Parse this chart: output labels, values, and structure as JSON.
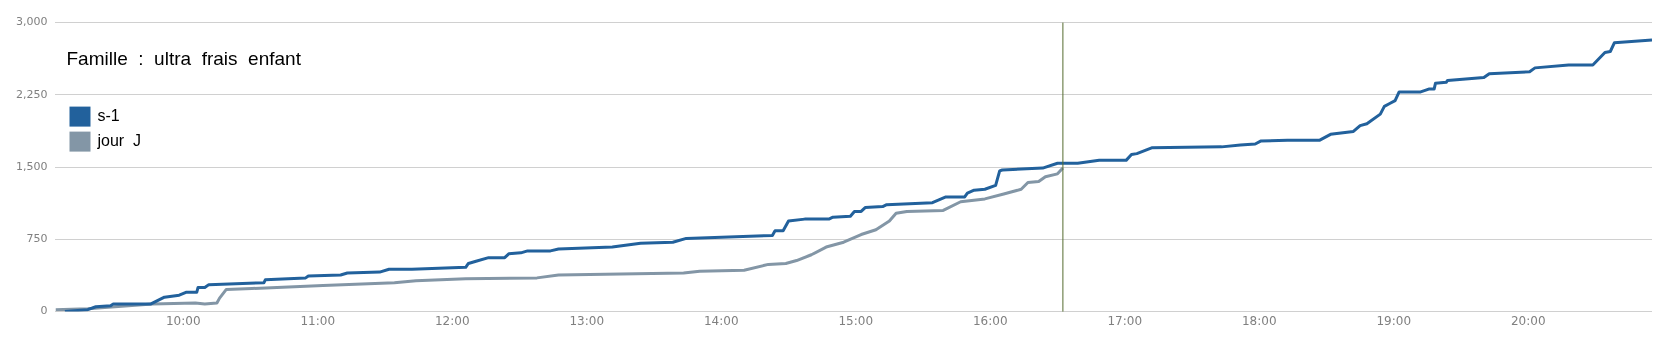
{
  "chart_data": {
    "type": "line",
    "title": "Famille  :  ultra  frais  enfant",
    "legend": "top left",
    "grid": "y",
    "marker": "none",
    "line_style": "solid",
    "xlim": [
      9.05,
      20.92
    ],
    "xticks": [
      {
        "value": 10,
        "label": "10:00"
      },
      {
        "value": 11,
        "label": "11:00"
      },
      {
        "value": 12,
        "label": "12:00"
      },
      {
        "value": 13,
        "label": "13:00"
      },
      {
        "value": 14,
        "label": "14:00"
      },
      {
        "value": 15,
        "label": "15:00"
      },
      {
        "value": 16,
        "label": "16:00"
      },
      {
        "value": 17,
        "label": "17:00"
      },
      {
        "value": 18,
        "label": "18:00"
      },
      {
        "value": 19,
        "label": "19:00"
      },
      {
        "value": 20,
        "label": "20:00"
      }
    ],
    "ylim": [
      0,
      3000
    ],
    "yticks": [
      0,
      750,
      {
        "value": 1500,
        "label": "1,500"
      },
      {
        "value": 2250,
        "label": "2,250"
      },
      {
        "value": 3000,
        "label": "3,000"
      }
    ],
    "ref_lines": [
      {
        "axis": "x",
        "value": 16.54,
        "color": "#556b2f"
      }
    ],
    "series": [
      {
        "name": "s-1",
        "color": "#22619c",
        "x": [
          9.12,
          9.29,
          9.35,
          9.46,
          9.48,
          9.76,
          9.86,
          9.97,
          10.02,
          10.1,
          10.11,
          10.16,
          10.19,
          10.6,
          10.61,
          10.78,
          10.91,
          10.93,
          11.17,
          11.22,
          11.46,
          11.53,
          11.7,
          12.1,
          12.12,
          12.17,
          12.27,
          12.39,
          12.42,
          12.51,
          12.56,
          12.73,
          12.79,
          13.19,
          13.4,
          13.64,
          13.74,
          14.38,
          14.4,
          14.46,
          14.5,
          14.62,
          14.8,
          14.83,
          14.96,
          14.99,
          15.04,
          15.07,
          15.2,
          15.23,
          15.57,
          15.67,
          15.81,
          15.83,
          15.88,
          15.96,
          16.04,
          16.07,
          16.09,
          16.39,
          16.5,
          16.65,
          16.81,
          17.01,
          17.05,
          17.09,
          17.2,
          17.72,
          17.86,
          17.97,
          18.01,
          18.21,
          18.45,
          18.53,
          18.7,
          18.75,
          18.8,
          18.9,
          18.93,
          18.97,
          19.01,
          19.04,
          19.2,
          19.26,
          19.3,
          19.31,
          19.39,
          19.4,
          19.67,
          19.71,
          20.01,
          20.05,
          20.3,
          20.48,
          20.57,
          20.61,
          20.64,
          20.92
        ],
        "values": [
          0,
          20,
          50,
          60,
          80,
          80,
          150,
          170,
          200,
          200,
          250,
          250,
          280,
          300,
          330,
          340,
          350,
          370,
          380,
          400,
          410,
          440,
          440,
          460,
          500,
          520,
          560,
          560,
          600,
          610,
          630,
          630,
          650,
          670,
          710,
          720,
          760,
          790,
          840,
          840,
          940,
          960,
          960,
          980,
          990,
          1040,
          1040,
          1080,
          1090,
          1110,
          1130,
          1190,
          1190,
          1230,
          1260,
          1270,
          1310,
          1460,
          1470,
          1490,
          1540,
          1540,
          1570,
          1570,
          1630,
          1640,
          1700,
          1710,
          1730,
          1740,
          1770,
          1780,
          1780,
          1840,
          1870,
          1930,
          1950,
          2050,
          2130,
          2160,
          2190,
          2280,
          2280,
          2310,
          2310,
          2370,
          2380,
          2400,
          2430,
          2470,
          2490,
          2530,
          2560,
          2560,
          2690,
          2700,
          2790,
          2820
        ]
      },
      {
        "name": "jour  J",
        "color": "#8396a6",
        "x": [
          9.05,
          9.29,
          9.77,
          10.09,
          10.16,
          10.25,
          10.27,
          10.32,
          10.51,
          11.04,
          11.57,
          11.73,
          12.1,
          12.63,
          12.79,
          13.72,
          13.84,
          14.17,
          14.35,
          14.48,
          14.56,
          14.67,
          14.78,
          14.91,
          15.04,
          15.15,
          15.25,
          15.3,
          15.38,
          15.65,
          15.78,
          15.96,
          16.1,
          16.23,
          16.28,
          16.36,
          16.41,
          16.5,
          16.54
        ],
        "values": [
          20,
          30,
          80,
          90,
          80,
          90,
          140,
          230,
          240,
          270,
          300,
          320,
          340,
          350,
          380,
          400,
          420,
          430,
          490,
          500,
          530,
          590,
          670,
          720,
          800,
          850,
          940,
          1020,
          1040,
          1050,
          1140,
          1170,
          1220,
          1270,
          1340,
          1350,
          1400,
          1430,
          1490
        ]
      }
    ]
  }
}
